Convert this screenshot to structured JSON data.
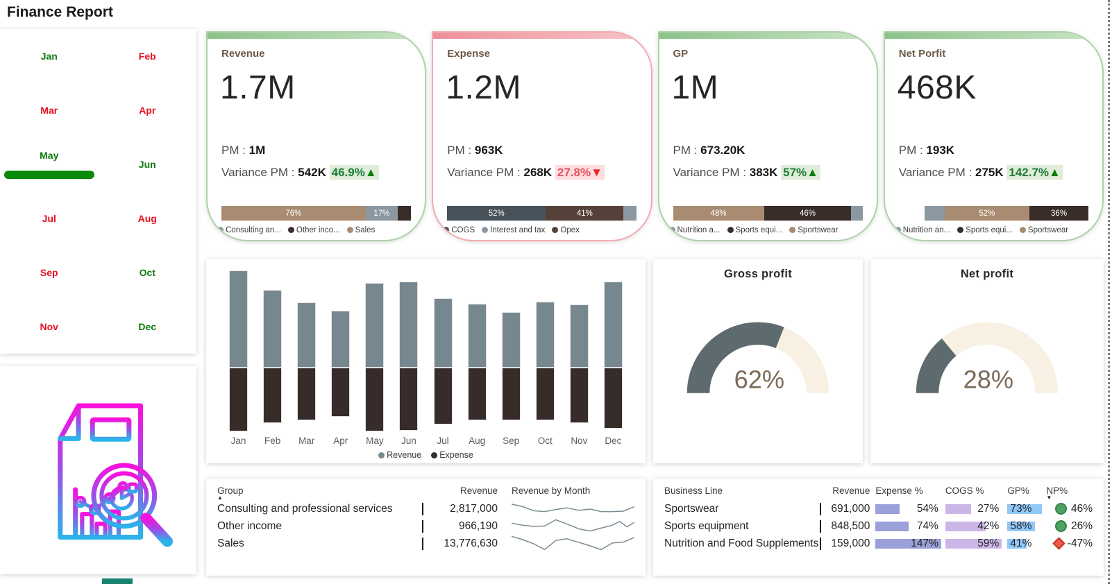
{
  "page": {
    "title": "Finance Report"
  },
  "labels": {
    "pm": "PM : ",
    "variance": "Variance PM : "
  },
  "colors": {
    "month_green": "#0b7a0b",
    "month_red": "#e81123",
    "selected_pill": "#0a8a0a",
    "tan": "#a98b71",
    "grayblue": "#8b98a1",
    "dark": "#382d29",
    "slate": "#47525a",
    "brown": "#56413a",
    "bar_revenue": "#76878f",
    "bar_expense": "#372c29",
    "gauge_fill": "#5d6b6f",
    "gauge_rest": "#f8f0e3",
    "gauge_value_text": "#7c6a58",
    "expense_databar": "#9aa0d8",
    "cogs_databar": "#ccb6e8",
    "gp_databar": "#90c8f8",
    "np_positive": "#4ea362",
    "np_negative": "#ee5a49",
    "badge_up_text": "#1e7e38",
    "badge_up_bg": "#dfecd9",
    "badge_down_text": "#e25560",
    "badge_down_bg": "#fcdcdf",
    "card_green_border": "#add2a9",
    "card_red_border": "#f3abb1",
    "spark_line": "#7b8a92",
    "teal_stub": "#17826e"
  },
  "slicer": {
    "selected": "May",
    "months": [
      {
        "label": "Jan",
        "tone": "green"
      },
      {
        "label": "Feb",
        "tone": "red"
      },
      {
        "label": "Mar",
        "tone": "red"
      },
      {
        "label": "Apr",
        "tone": "red"
      },
      {
        "label": "May",
        "tone": "green",
        "selected": true
      },
      {
        "label": "Jun",
        "tone": "green"
      },
      {
        "label": "Jul",
        "tone": "red"
      },
      {
        "label": "Aug",
        "tone": "red"
      },
      {
        "label": "Sep",
        "tone": "red"
      },
      {
        "label": "Oct",
        "tone": "green"
      },
      {
        "label": "Nov",
        "tone": "red"
      },
      {
        "label": "Dec",
        "tone": "green"
      }
    ]
  },
  "kpi_cards": [
    {
      "title": "Revenue",
      "tone": "green",
      "value": "1.7M",
      "pm_value": "1M",
      "variance_value": "542K",
      "variance_badge": "46.9%",
      "variance_arrow": "▲",
      "variance_dir": "up",
      "bar": {
        "align": "left",
        "width_pct": 100,
        "segments": [
          {
            "color": "tan",
            "pct": 76,
            "label": "76%"
          },
          {
            "color": "grayblue",
            "pct": 17,
            "label": "17%"
          },
          {
            "color": "dark",
            "pct": 7,
            "label": ""
          }
        ]
      },
      "legend": [
        {
          "color": "grayblue",
          "label": "Consulting an..."
        },
        {
          "color": "dark",
          "label": "Other inco..."
        },
        {
          "color": "tan",
          "label": "Sales"
        }
      ]
    },
    {
      "title": "Expense",
      "tone": "red",
      "value": "1.2M",
      "pm_value": "963K",
      "variance_value": "268K",
      "variance_badge": "27.8%",
      "variance_arrow": "▼",
      "variance_dir": "down",
      "bar": {
        "align": "left",
        "width_pct": 100,
        "segments": [
          {
            "color": "slate",
            "pct": 52,
            "label": "52%"
          },
          {
            "color": "brown",
            "pct": 41,
            "label": "41%"
          },
          {
            "color": "grayblue",
            "pct": 7,
            "label": ""
          }
        ]
      },
      "legend": [
        {
          "color": "slate",
          "label": "COGS"
        },
        {
          "color": "grayblue",
          "label": "Interest and tax"
        },
        {
          "color": "brown",
          "label": "Opex"
        }
      ]
    },
    {
      "title": "GP",
      "tone": "green",
      "value": "1M",
      "pm_value": "673.20K",
      "variance_value": "383K",
      "variance_badge": "57%",
      "variance_arrow": "▲",
      "variance_dir": "up",
      "bar": {
        "align": "left",
        "width_pct": 100,
        "segments": [
          {
            "color": "tan",
            "pct": 48,
            "label": "48%"
          },
          {
            "color": "dark",
            "pct": 46,
            "label": "46%"
          },
          {
            "color": "grayblue",
            "pct": 6,
            "label": ""
          }
        ]
      },
      "legend": [
        {
          "color": "grayblue",
          "label": "Nutrition a..."
        },
        {
          "color": "dark",
          "label": "Sports equi..."
        },
        {
          "color": "tan",
          "label": "Sportswear"
        }
      ]
    },
    {
      "title": "Net Porfit",
      "tone": "green",
      "value": "468K",
      "pm_value": "193K",
      "variance_value": "275K",
      "variance_badge": "142.7%",
      "variance_arrow": "▲",
      "variance_dir": "up",
      "bar": {
        "align": "right",
        "width_pct": 88,
        "segments": [
          {
            "color": "grayblue",
            "pct": 12,
            "label": ""
          },
          {
            "color": "tan",
            "pct": 52,
            "label": "52%"
          },
          {
            "color": "dark",
            "pct": 36,
            "label": "36%"
          }
        ]
      },
      "legend": [
        {
          "color": "grayblue",
          "label": "Nutrition an..."
        },
        {
          "color": "dark",
          "label": "Sports equi..."
        },
        {
          "color": "tan",
          "label": "Sportswear"
        }
      ]
    }
  ],
  "chart_data": [
    {
      "type": "bar",
      "title": "Revenue and Expense by Month (mirrored bars, unlabeled axis)",
      "categories": [
        "Jan",
        "Feb",
        "Mar",
        "Apr",
        "May",
        "Jun",
        "Jul",
        "Aug",
        "Sep",
        "Oct",
        "Nov",
        "Dec"
      ],
      "series": [
        {
          "name": "Revenue",
          "direction": "up",
          "color_key": "bar_revenue",
          "values": [
            117,
            93,
            78,
            68,
            102,
            103,
            83,
            77,
            67,
            79,
            76,
            103
          ]
        },
        {
          "name": "Expense",
          "direction": "down",
          "color_key": "bar_expense",
          "values": [
            77,
            67,
            63,
            59,
            77,
            76,
            68,
            63,
            63,
            63,
            67,
            73
          ]
        }
      ],
      "unit": "relative height (px estimate, no axis labels shown)",
      "legend_position": "bottom",
      "grid": false
    },
    {
      "type": "gauge",
      "title": "Gross profit",
      "value_pct": 62,
      "label": "62%"
    },
    {
      "type": "gauge",
      "title": "Net profit",
      "value_pct": 28,
      "label": "28%"
    },
    {
      "type": "table",
      "columns": [
        "Group",
        "Revenue",
        "Revenue by Month"
      ],
      "sort": {
        "column": "Group",
        "dir": "asc"
      },
      "rows": [
        {
          "group": "Consulting and professional services",
          "revenue": "2,817,000",
          "spark": "0,8 9,14 18,24 27,26 36,21 45,17 55,23 64,20 73,26 82,26 91,25 100,14"
        },
        {
          "group": "Other income",
          "revenue": "966,190",
          "spark": "0,12 9,17 18,20 27,19 36,4 45,14 55,26 64,31 73,24 82,17 88,8 94,21 100,10"
        },
        {
          "group": "Sales",
          "revenue": "13,776,630",
          "spark": "0,2 9,10 18,20 27,34 36,12 45,8 55,17 64,25 73,34 82,18 91,16 100,5"
        }
      ]
    },
    {
      "type": "table",
      "columns": [
        "Business Line",
        "Revenue",
        "Expense %",
        "COGS %",
        "GP%",
        "NP%"
      ],
      "sort": {
        "column": "NP%",
        "dir": "desc"
      },
      "rows": [
        {
          "name": "Sportswear",
          "revenue": "691,000",
          "expense_pct": 54,
          "cogs_pct": 27,
          "gp_pct": 73,
          "np_pct": "46%",
          "np_icon": "circle-green"
        },
        {
          "name": "Sports equipment",
          "revenue": "848,500",
          "expense_pct": 74,
          "cogs_pct": 42,
          "gp_pct": 58,
          "np_pct": "26%",
          "np_icon": "circle-green"
        },
        {
          "name": "Nutrition and Food Supplements",
          "revenue": "159,000",
          "expense_pct": 147,
          "cogs_pct": 59,
          "gp_pct": 41,
          "np_pct": "-47%",
          "np_icon": "diamond-red"
        }
      ]
    }
  ]
}
